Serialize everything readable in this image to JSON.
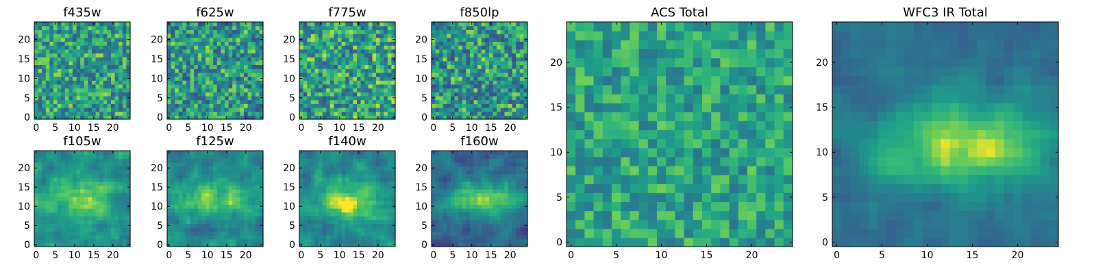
{
  "figure": {
    "colormap": "viridis",
    "colors": {
      "low": "#440154",
      "mid_low": "#31688e",
      "mid": "#21918c",
      "mid_high": "#5ec962",
      "high": "#fde725"
    }
  },
  "chart_data": [
    {
      "id": "f435w",
      "type": "heatmap",
      "title": "f435w",
      "grid_size": [
        25,
        25
      ],
      "xlim": [
        0,
        24
      ],
      "ylim": [
        0,
        24
      ],
      "xticks": [
        "0",
        "5",
        "10",
        "15",
        "20"
      ],
      "yticks": [
        "0",
        "5",
        "10",
        "15",
        "20"
      ],
      "value_range": [
        0,
        1
      ],
      "mean_level": 0.62,
      "noise": 0.3,
      "features": []
    },
    {
      "id": "f625w",
      "type": "heatmap",
      "title": "f625w",
      "grid_size": [
        25,
        25
      ],
      "xlim": [
        0,
        24
      ],
      "ylim": [
        0,
        24
      ],
      "xticks": [
        "0",
        "5",
        "10",
        "15",
        "20"
      ],
      "yticks": [
        "0",
        "5",
        "10",
        "15",
        "20"
      ],
      "value_range": [
        0,
        1
      ],
      "mean_level": 0.6,
      "noise": 0.32,
      "features": []
    },
    {
      "id": "f775w",
      "type": "heatmap",
      "title": "f775w",
      "grid_size": [
        25,
        25
      ],
      "xlim": [
        0,
        24
      ],
      "ylim": [
        0,
        24
      ],
      "xticks": [
        "0",
        "5",
        "10",
        "15",
        "20"
      ],
      "yticks": [
        "0",
        "5",
        "10",
        "15",
        "20"
      ],
      "value_range": [
        0,
        1
      ],
      "mean_level": 0.63,
      "noise": 0.32,
      "features": []
    },
    {
      "id": "f850lp",
      "type": "heatmap",
      "title": "f850lp",
      "grid_size": [
        25,
        25
      ],
      "xlim": [
        0,
        24
      ],
      "ylim": [
        0,
        24
      ],
      "xticks": [
        "0",
        "5",
        "10",
        "15",
        "20"
      ],
      "yticks": [
        "0",
        "5",
        "10",
        "15",
        "20"
      ],
      "value_range": [
        0,
        1
      ],
      "mean_level": 0.6,
      "noise": 0.33,
      "features": []
    },
    {
      "id": "f105w",
      "type": "heatmap",
      "title": "f105w",
      "grid_size": [
        25,
        25
      ],
      "xlim": [
        0,
        24
      ],
      "ylim": [
        0,
        24
      ],
      "xticks": [
        "0",
        "5",
        "10",
        "15",
        "20"
      ],
      "yticks": [
        "0",
        "5",
        "10",
        "15",
        "20"
      ],
      "value_range": [
        0,
        1
      ],
      "mean_level": 0.55,
      "noise": 0.2,
      "smooth": true,
      "features": [
        {
          "x": 12,
          "y": 12,
          "sigma_x": 6,
          "sigma_y": 5,
          "amp": 0.3
        }
      ]
    },
    {
      "id": "f125w",
      "type": "heatmap",
      "title": "f125w",
      "grid_size": [
        25,
        25
      ],
      "xlim": [
        0,
        24
      ],
      "ylim": [
        0,
        24
      ],
      "xticks": [
        "0",
        "5",
        "10",
        "15",
        "20"
      ],
      "yticks": [
        "0",
        "5",
        "10",
        "15",
        "20"
      ],
      "value_range": [
        0,
        1
      ],
      "mean_level": 0.5,
      "noise": 0.2,
      "smooth": true,
      "features": [
        {
          "x": 12,
          "y": 12,
          "sigma_x": 7,
          "sigma_y": 3.5,
          "amp": 0.4
        }
      ]
    },
    {
      "id": "f140w",
      "type": "heatmap",
      "title": "f140w",
      "grid_size": [
        25,
        25
      ],
      "xlim": [
        0,
        24
      ],
      "ylim": [
        0,
        24
      ],
      "xticks": [
        "0",
        "5",
        "10",
        "15",
        "20"
      ],
      "yticks": [
        "0",
        "5",
        "10",
        "15",
        "20"
      ],
      "value_range": [
        0,
        1
      ],
      "mean_level": 0.48,
      "noise": 0.2,
      "smooth": true,
      "features": [
        {
          "x": 12,
          "y": 11,
          "sigma_x": 7,
          "sigma_y": 4,
          "amp": 0.45
        }
      ]
    },
    {
      "id": "f160w",
      "type": "heatmap",
      "title": "f160w",
      "grid_size": [
        25,
        25
      ],
      "xlim": [
        0,
        24
      ],
      "ylim": [
        0,
        24
      ],
      "xticks": [
        "0",
        "5",
        "10",
        "15",
        "20"
      ],
      "yticks": [
        "0",
        "5",
        "10",
        "15",
        "20"
      ],
      "value_range": [
        0,
        1
      ],
      "mean_level": 0.38,
      "noise": 0.18,
      "smooth": true,
      "features": [
        {
          "x": 13,
          "y": 12,
          "sigma_x": 7,
          "sigma_y": 3,
          "amp": 0.55
        }
      ]
    },
    {
      "id": "acs-total",
      "type": "heatmap",
      "title": "ACS Total",
      "grid_size": [
        25,
        25
      ],
      "xlim": [
        0,
        24
      ],
      "ylim": [
        0,
        24
      ],
      "xticks": [
        "0",
        "5",
        "10",
        "15",
        "20"
      ],
      "yticks": [
        "0",
        "5",
        "10",
        "15",
        "20"
      ],
      "value_range": [
        0,
        1
      ],
      "mean_level": 0.66,
      "noise": 0.22,
      "features": []
    },
    {
      "id": "wfc3-ir-total",
      "type": "heatmap",
      "title": "WFC3 IR Total",
      "grid_size": [
        25,
        25
      ],
      "xlim": [
        0,
        24
      ],
      "ylim": [
        0,
        24
      ],
      "xticks": [
        "0",
        "5",
        "10",
        "15",
        "20"
      ],
      "yticks": [
        "0",
        "5",
        "10",
        "15",
        "20"
      ],
      "value_range": [
        0,
        1
      ],
      "mean_level": 0.4,
      "noise": 0.12,
      "smooth": true,
      "features": [
        {
          "x": 14,
          "y": 11,
          "sigma_x": 7,
          "sigma_y": 3.5,
          "amp": 0.55
        }
      ]
    }
  ]
}
